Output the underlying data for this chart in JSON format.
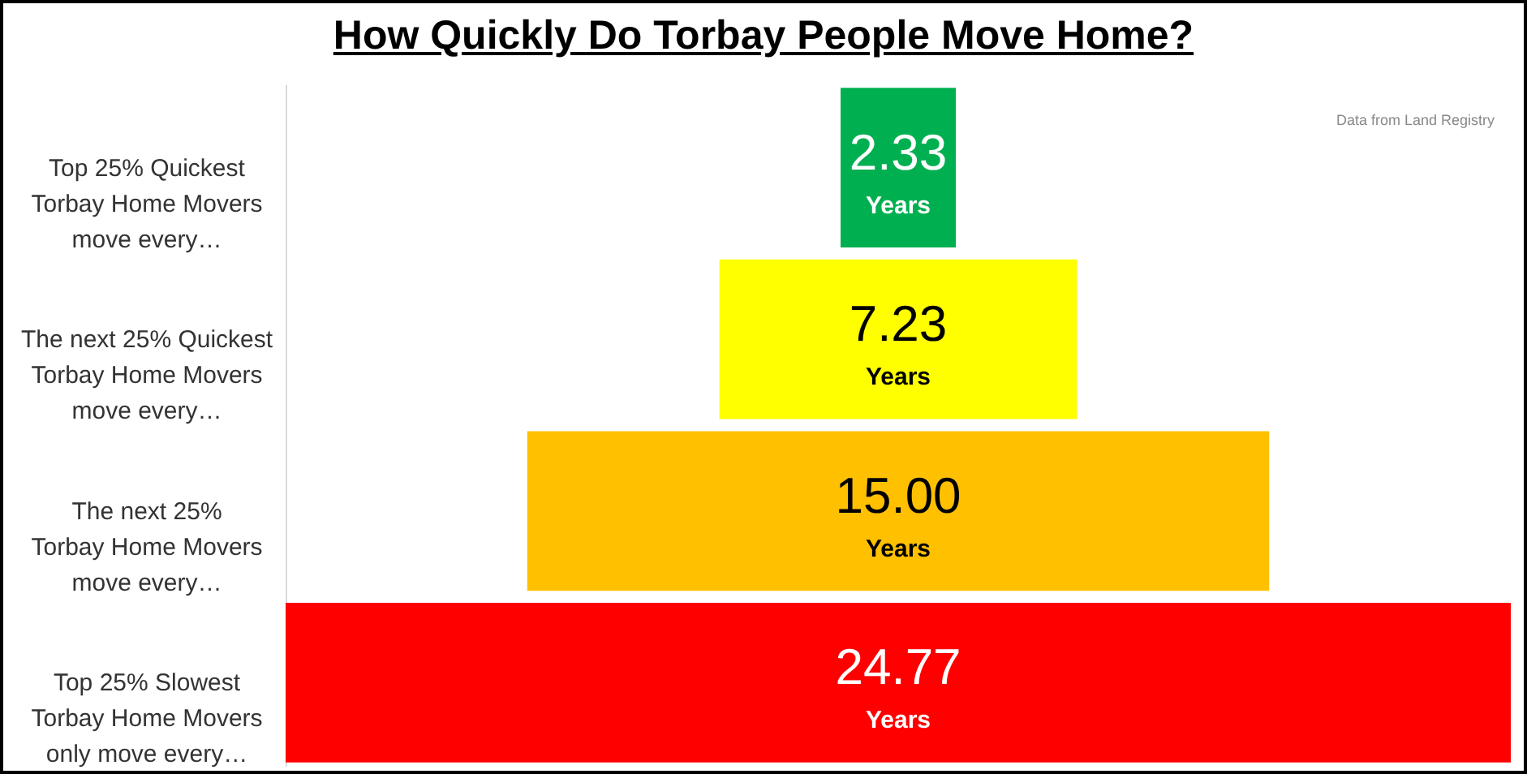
{
  "chart_data": {
    "type": "other",
    "title": "How Quickly Do Torbay People Move Home?",
    "categories": [
      "Top 25% Quickest\nTorbay Home Movers\nmove every…",
      "The next 25% Quickest\nTorbay Home Movers\nmove every…",
      "The next 25%\nTorbay Home Movers\nmove every…",
      "Top 25% Slowest\nTorbay Home Movers\nonly move every…"
    ],
    "values": [
      2.33,
      7.23,
      15.0,
      24.77
    ],
    "value_labels": [
      "2.33",
      "7.23",
      "15.00",
      "24.77"
    ],
    "colors": [
      "#00b050",
      "#ffff00",
      "#ffc000",
      "#ff0000"
    ],
    "annotations": [
      "Data from Land Registry",
      {
        "text": "Years",
        "y": "Top 25% Quickest\nTorbay Home Movers\nmove every…"
      },
      {
        "text": "Years",
        "y": "The next 25% Quickest\nTorbay Home Movers\nmove every…"
      },
      {
        "text": "Years",
        "y": "The next 25%\nTorbay Home Movers\nmove every…"
      },
      {
        "text": "Years",
        "y": "Top 25% Slowest\nTorbay Home Movers\nonly move every…"
      }
    ]
  }
}
